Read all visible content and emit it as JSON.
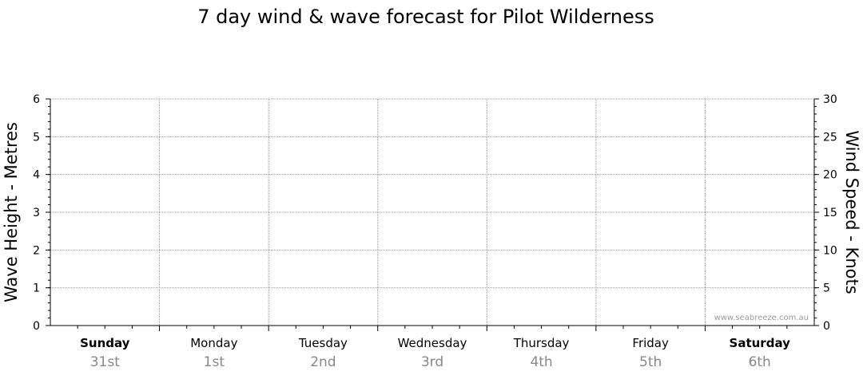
{
  "chart_data": {
    "type": "line",
    "title": "7 day wind & wave forecast for Pilot Wilderness",
    "ylabel_left": "Wave Height - Metres",
    "ylabel_right": "Wind Speed - Knots",
    "ylim_left": [
      0,
      6
    ],
    "yticks_left": [
      "0",
      "1",
      "2",
      "3",
      "4",
      "5",
      "6"
    ],
    "ylim_right": [
      0,
      30
    ],
    "yticks_right": [
      "0",
      "5",
      "10",
      "15",
      "20",
      "25",
      "30"
    ],
    "grid": true,
    "days": [
      {
        "name": "Sunday",
        "date": "31st",
        "bold": true
      },
      {
        "name": "Monday",
        "date": "1st",
        "bold": false
      },
      {
        "name": "Tuesday",
        "date": "2nd",
        "bold": false
      },
      {
        "name": "Wednesday",
        "date": "3rd",
        "bold": false
      },
      {
        "name": "Thursday",
        "date": "4th",
        "bold": false
      },
      {
        "name": "Friday",
        "date": "5th",
        "bold": false
      },
      {
        "name": "Saturday",
        "date": "6th",
        "bold": true
      }
    ],
    "series": []
  },
  "watermark": "www.seabreeze.com.au",
  "colors": {
    "grid": "#999999",
    "axis": "#000000",
    "date_text": "#888888",
    "watermark": "#9a9a9a"
  }
}
